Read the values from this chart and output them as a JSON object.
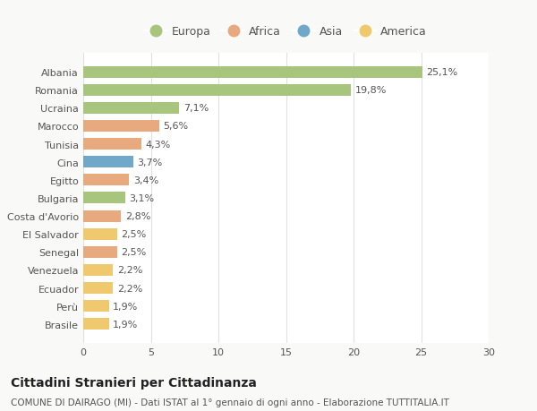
{
  "countries": [
    "Albania",
    "Romania",
    "Ucraina",
    "Marocco",
    "Tunisia",
    "Cina",
    "Egitto",
    "Bulgaria",
    "Costa d'Avorio",
    "El Salvador",
    "Senegal",
    "Venezuela",
    "Ecuador",
    "Perù",
    "Brasile"
  ],
  "values": [
    25.1,
    19.8,
    7.1,
    5.6,
    4.3,
    3.7,
    3.4,
    3.1,
    2.8,
    2.5,
    2.5,
    2.2,
    2.2,
    1.9,
    1.9
  ],
  "labels": [
    "25,1%",
    "19,8%",
    "7,1%",
    "5,6%",
    "4,3%",
    "3,7%",
    "3,4%",
    "3,1%",
    "2,8%",
    "2,5%",
    "2,5%",
    "2,2%",
    "2,2%",
    "1,9%",
    "1,9%"
  ],
  "continents": [
    "Europa",
    "Europa",
    "Europa",
    "Africa",
    "Africa",
    "Asia",
    "Africa",
    "Europa",
    "Africa",
    "America",
    "Africa",
    "America",
    "America",
    "America",
    "America"
  ],
  "continent_colors": {
    "Europa": "#a8c57e",
    "Africa": "#e8a97e",
    "Asia": "#6fa8c8",
    "America": "#f0c96e"
  },
  "legend_order": [
    "Europa",
    "Africa",
    "Asia",
    "America"
  ],
  "xlim": [
    0,
    30
  ],
  "xticks": [
    0,
    5,
    10,
    15,
    20,
    25,
    30
  ],
  "title": "Cittadini Stranieri per Cittadinanza",
  "subtitle": "COMUNE DI DAIRAGO (MI) - Dati ISTAT al 1° gennaio di ogni anno - Elaborazione TUTTITALIA.IT",
  "background_color": "#f9f9f7",
  "plot_bg_color": "#ffffff",
  "grid_color": "#e0e0e0",
  "bar_height": 0.65,
  "title_fontsize": 10,
  "subtitle_fontsize": 7.5,
  "label_fontsize": 8,
  "tick_fontsize": 8,
  "legend_fontsize": 9
}
